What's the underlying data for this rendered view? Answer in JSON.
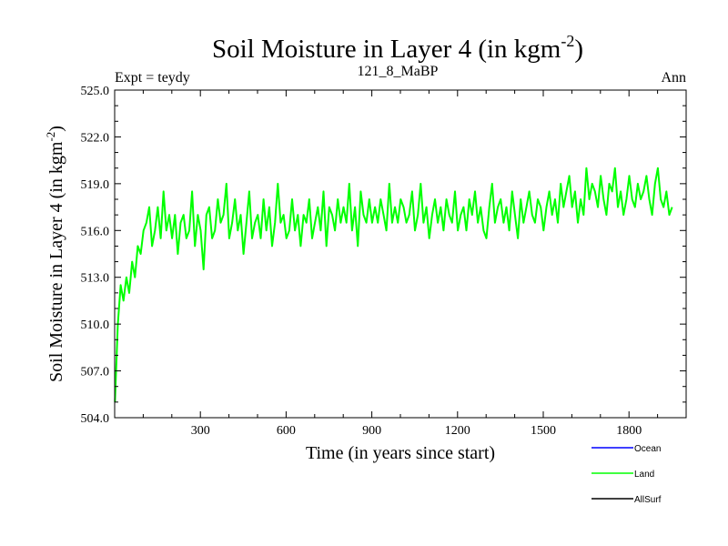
{
  "chart_data": {
    "type": "line",
    "title": "Soil Moisture in Layer 4 (in kgm",
    "title_sup": "-2",
    "title_close": ")",
    "subtitle_left": "Expt = teydy",
    "subtitle_center": "121_8_MaBP",
    "subtitle_right": "Ann",
    "xlabel": "Time (in years since start)",
    "ylabel": "Soil Moisture in Layer 4 (in kgm",
    "ylabel_sup": "-2",
    "ylabel_close": ")",
    "xlim": [
      0,
      2000
    ],
    "ylim": [
      504.0,
      525.0
    ],
    "x_ticks": [
      300,
      600,
      900,
      1200,
      1500,
      1800
    ],
    "x_tick_labels": [
      "300",
      "600",
      "900",
      "1200",
      "1500",
      "1800"
    ],
    "y_ticks": [
      504.0,
      507.0,
      510.0,
      513.0,
      516.0,
      519.0,
      522.0,
      525.0
    ],
    "y_tick_labels": [
      "504.0",
      "507.0",
      "510.0",
      "513.0",
      "516.0",
      "519.0",
      "522.0",
      "525.0"
    ],
    "grid": false,
    "legend_position": "bottom-right",
    "series": [
      {
        "name": "Ocean",
        "color": "#0000ff",
        "values": []
      },
      {
        "name": "Land",
        "color": "#00ff00",
        "x_start": 1,
        "x_step": 10,
        "values": [
          505.0,
          510.0,
          512.5,
          511.5,
          513.0,
          512.0,
          514.0,
          513.0,
          515.0,
          514.5,
          516.0,
          516.5,
          517.5,
          515.0,
          516.0,
          517.5,
          515.5,
          518.5,
          516.0,
          517.0,
          515.5,
          517.0,
          514.5,
          516.5,
          517.0,
          515.5,
          516.0,
          518.5,
          515.0,
          517.0,
          516.0,
          513.5,
          517.0,
          517.5,
          515.5,
          516.0,
          518.0,
          516.5,
          517.0,
          519.0,
          515.5,
          516.5,
          518.0,
          516.0,
          517.0,
          514.5,
          516.5,
          518.5,
          515.5,
          516.5,
          517.0,
          515.5,
          518.0,
          516.0,
          517.5,
          515.0,
          516.5,
          519.0,
          516.5,
          517.0,
          515.5,
          516.0,
          518.0,
          516.0,
          517.0,
          515.0,
          517.0,
          516.5,
          518.0,
          515.5,
          516.5,
          517.5,
          516.0,
          518.5,
          515.0,
          517.5,
          517.0,
          516.0,
          518.0,
          516.5,
          517.5,
          516.5,
          519.0,
          516.0,
          517.5,
          515.0,
          518.5,
          517.0,
          516.5,
          518.0,
          516.5,
          517.5,
          516.5,
          518.0,
          517.0,
          516.0,
          519.0,
          516.5,
          517.5,
          516.5,
          518.0,
          517.5,
          516.5,
          517.0,
          518.5,
          516.0,
          517.0,
          519.0,
          516.5,
          517.5,
          515.5,
          517.0,
          518.0,
          516.5,
          517.5,
          516.0,
          518.0,
          517.0,
          516.5,
          518.5,
          516.0,
          517.0,
          517.5,
          516.0,
          518.0,
          517.0,
          518.5,
          516.5,
          517.5,
          516.0,
          515.5,
          517.5,
          519.0,
          516.5,
          517.5,
          518.0,
          516.5,
          517.5,
          516.0,
          518.5,
          517.0,
          515.5,
          518.0,
          516.5,
          517.5,
          518.5,
          517.0,
          516.5,
          518.0,
          517.5,
          516.0,
          517.5,
          518.5,
          517.0,
          518.0,
          516.5,
          519.0,
          517.5,
          518.5,
          519.5,
          517.5,
          518.5,
          516.5,
          518.0,
          517.0,
          520.0,
          518.0,
          519.0,
          518.5,
          517.5,
          519.5,
          518.0,
          517.0,
          519.0,
          518.5,
          520.0,
          517.5,
          518.5,
          517.0,
          518.0,
          519.5,
          518.0,
          517.5,
          519.0,
          518.0,
          518.5,
          519.5,
          518.0,
          517.0,
          519.0,
          520.0,
          518.0,
          517.5,
          518.5,
          517.0,
          517.5
        ]
      },
      {
        "name": "AllSurf",
        "color": "#000000",
        "values": []
      }
    ]
  }
}
